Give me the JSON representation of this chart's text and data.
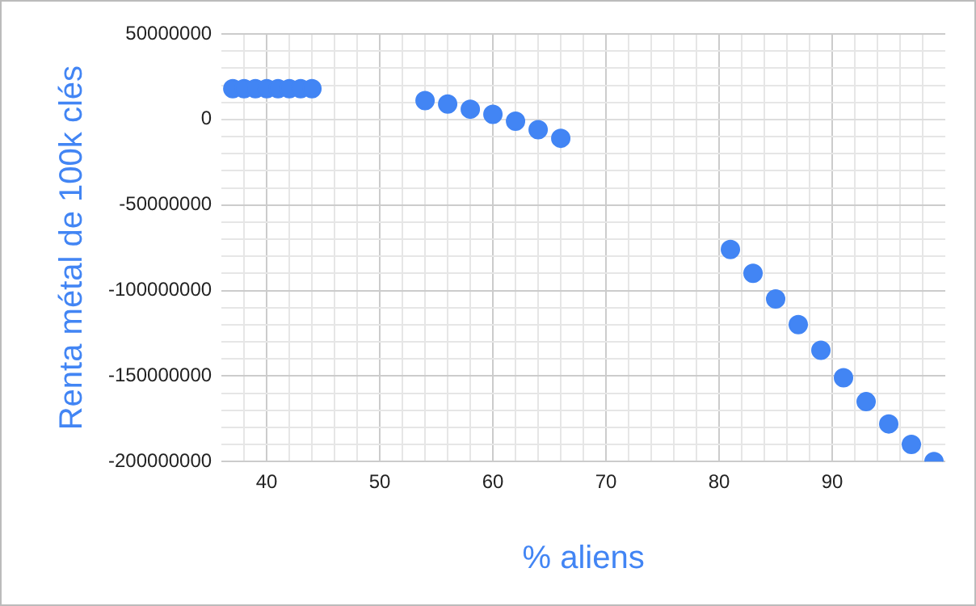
{
  "chart_data": {
    "type": "scatter",
    "xlabel": "% aliens",
    "ylabel": "Renta métal de 100k clés",
    "marker": "circle",
    "grid": true,
    "legend": false,
    "xlim": [
      36,
      100
    ],
    "xticks": [
      {
        "value": 38,
        "label": null
      },
      40,
      {
        "value": 42,
        "label": null
      },
      {
        "value": 44,
        "label": null
      },
      {
        "value": 46,
        "label": null
      },
      {
        "value": 48,
        "label": null
      },
      50,
      {
        "value": 52,
        "label": null
      },
      {
        "value": 54,
        "label": null
      },
      {
        "value": 56,
        "label": null
      },
      {
        "value": 58,
        "label": null
      },
      60,
      {
        "value": 62,
        "label": null
      },
      {
        "value": 64,
        "label": null
      },
      {
        "value": 66,
        "label": null
      },
      {
        "value": 68,
        "label": null
      },
      70,
      {
        "value": 72,
        "label": null
      },
      {
        "value": 74,
        "label": null
      },
      {
        "value": 76,
        "label": null
      },
      {
        "value": 78,
        "label": null
      },
      80,
      {
        "value": 82,
        "label": null
      },
      {
        "value": 84,
        "label": null
      },
      {
        "value": 86,
        "label": null
      },
      {
        "value": 88,
        "label": null
      },
      90,
      {
        "value": 92,
        "label": null
      },
      {
        "value": 94,
        "label": null
      },
      {
        "value": 96,
        "label": null
      },
      {
        "value": 98,
        "label": null
      }
    ],
    "ylim": [
      -200000000,
      50000000
    ],
    "yticks": [
      -200000000,
      {
        "value": -190000000,
        "label": null
      },
      {
        "value": -180000000,
        "label": null
      },
      {
        "value": -170000000,
        "label": null
      },
      {
        "value": -160000000,
        "label": null
      },
      -150000000,
      {
        "value": -140000000,
        "label": null
      },
      {
        "value": -130000000,
        "label": null
      },
      {
        "value": -120000000,
        "label": null
      },
      {
        "value": -110000000,
        "label": null
      },
      -100000000,
      {
        "value": -90000000,
        "label": null
      },
      {
        "value": -80000000,
        "label": null
      },
      {
        "value": -70000000,
        "label": null
      },
      {
        "value": -60000000,
        "label": null
      },
      -50000000,
      {
        "value": -40000000,
        "label": null
      },
      {
        "value": -30000000,
        "label": null
      },
      {
        "value": -20000000,
        "label": null
      },
      {
        "value": -10000000,
        "label": null
      },
      0,
      {
        "value": 10000000,
        "label": null
      },
      {
        "value": 20000000,
        "label": null
      },
      {
        "value": 30000000,
        "label": null
      },
      {
        "value": 40000000,
        "label": null
      },
      50000000
    ],
    "series": [
      {
        "color": "#4285f4",
        "x": [
          37,
          38,
          39,
          40,
          41,
          42,
          43,
          44,
          54,
          56,
          58,
          60,
          62,
          64,
          66,
          81,
          83,
          85,
          87,
          89,
          91,
          93,
          95,
          97,
          99
        ],
        "values": [
          18000000,
          18000000,
          18000000,
          18000000,
          18000000,
          18000000,
          18000000,
          18000000,
          11000000,
          9000000,
          6000000,
          3000000,
          -1000000,
          -6000000,
          -11000000,
          -76000000,
          -90000000,
          -105000000,
          -120000000,
          -135000000,
          -151000000,
          -165000000,
          -178000000,
          -190000000,
          -200000000
        ]
      }
    ]
  }
}
